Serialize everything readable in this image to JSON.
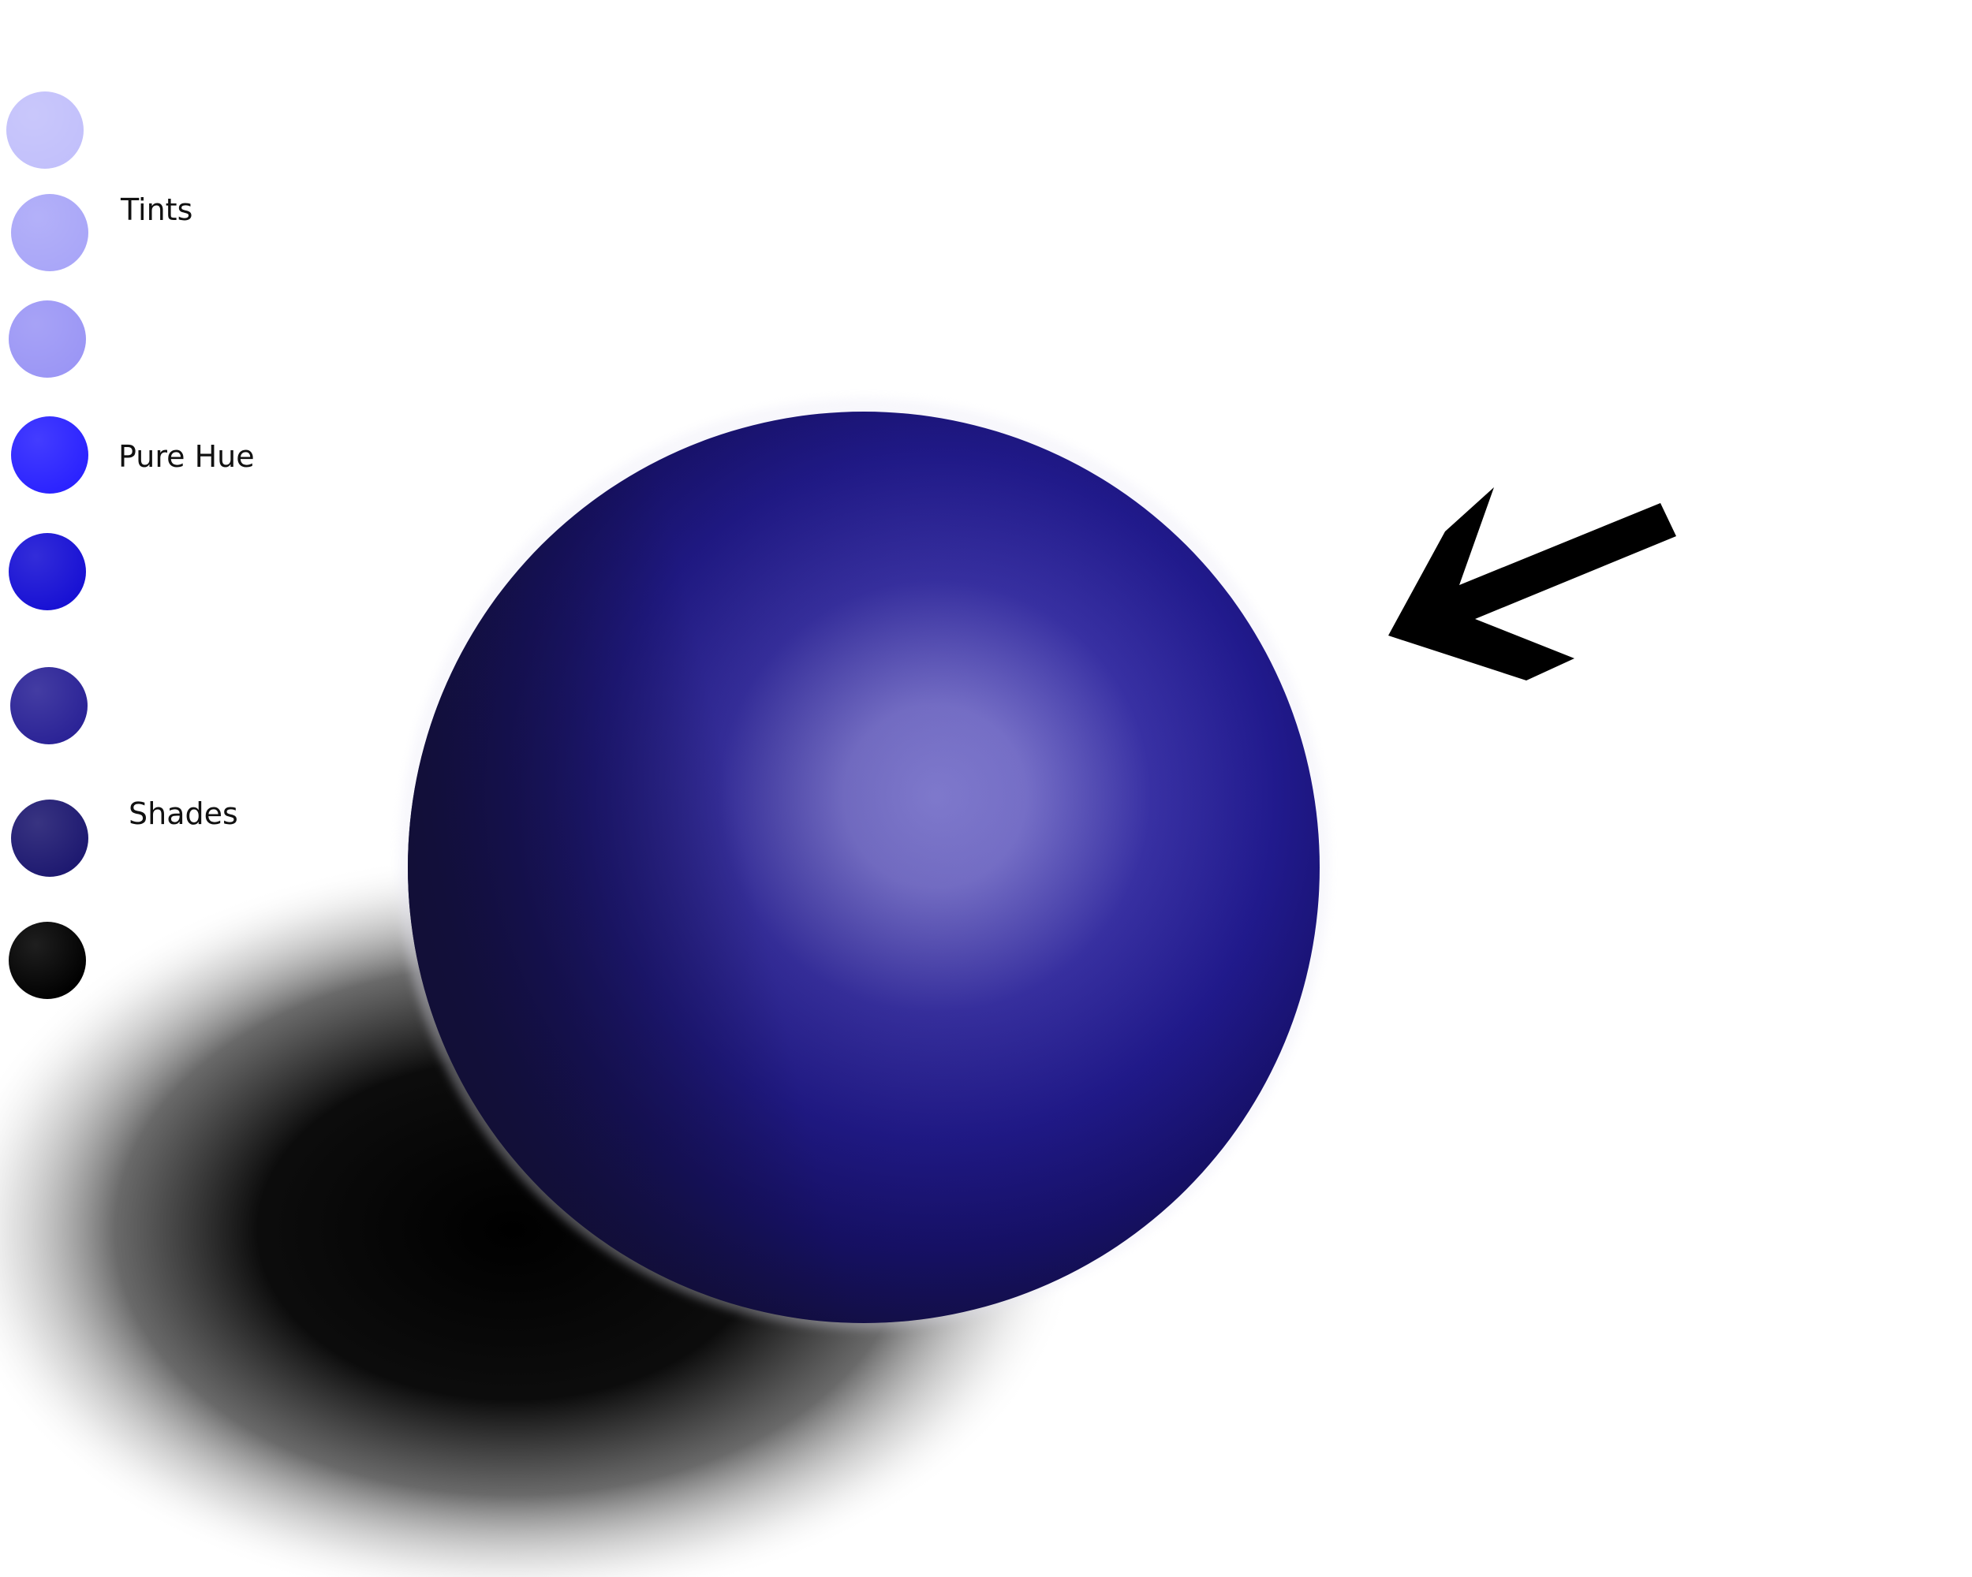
{
  "labels": {
    "tints": "Tints",
    "pure_hue": "Pure Hue",
    "shades": "Shades"
  },
  "swatches": [
    {
      "role": "tint",
      "color": "#c2c0fb"
    },
    {
      "role": "tint",
      "color": "#a9a6f8"
    },
    {
      "role": "tint",
      "color": "#9b96f5"
    },
    {
      "role": "pure-hue",
      "color": "#2a22ff"
    },
    {
      "role": "shade",
      "color": "#1710d4"
    },
    {
      "role": "shade",
      "color": "#2a2296"
    },
    {
      "role": "shade",
      "color": "#1d1870"
    },
    {
      "role": "shade",
      "color": "#000000"
    }
  ],
  "sphere": {
    "highlight_color": "#8880d8",
    "base_color": "#241ca0",
    "shadow_color": "#120f3e"
  },
  "cast_shadow_color": "#000000",
  "light_direction_arrow_color": "#000000"
}
